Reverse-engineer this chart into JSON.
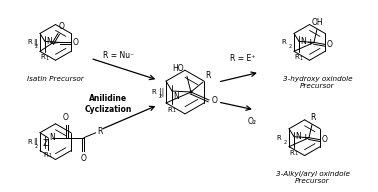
{
  "bg_color": "#ffffff",
  "fig_width": 3.78,
  "fig_height": 1.92,
  "dpi": 100,
  "labels": {
    "isatin": "Isatin Precursor",
    "anilidine": "Anilidine\nCyclization",
    "r_nu": "R = Nu⁻",
    "r_e": "R = E⁺",
    "o2": "O₂",
    "hydroxy": "3-hydroxy oxindole\nPrecursor",
    "alkyl": "3-Alkyl/aryl oxindole\nPrecursor"
  }
}
